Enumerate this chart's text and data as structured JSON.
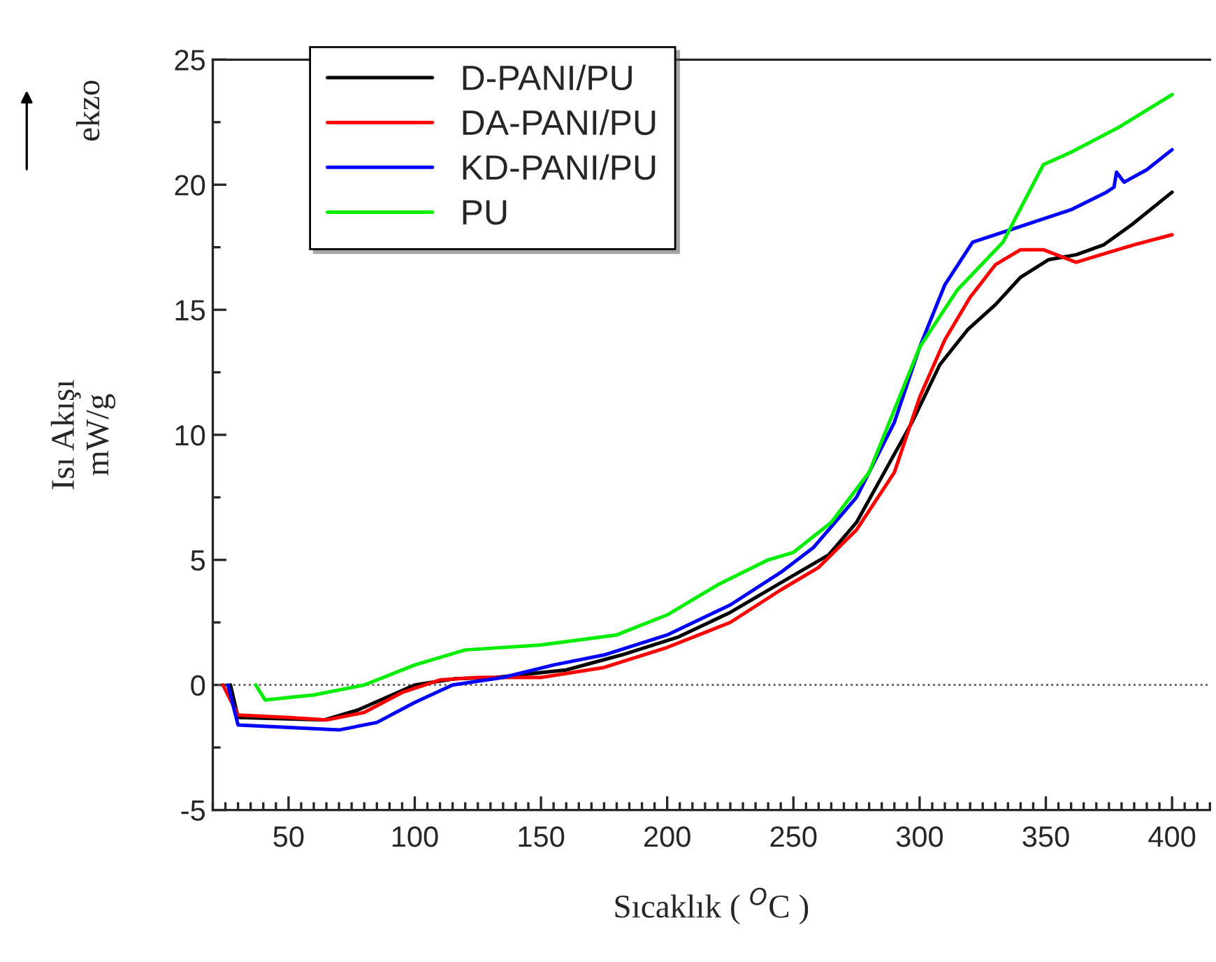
{
  "chart_data": {
    "type": "line",
    "xlabel": "Sıcaklık ( $^{O}$C )",
    "ylabel": "Isı Akışı\nmW/g",
    "annotations": [
      "ekzo"
    ],
    "xlim": [
      20,
      415
    ],
    "xticks": [
      50,
      100,
      150,
      200,
      250,
      300,
      350,
      400
    ],
    "ylim": [
      -5,
      25
    ],
    "yticks": [
      -5,
      0,
      5,
      10,
      15,
      20,
      25
    ],
    "grid": false,
    "legend": "top left",
    "marker": "none",
    "line_style": "solid",
    "ref_lines": [
      {
        "axis": "y",
        "value": 0,
        "color": "#555555",
        "line_style": "dotted"
      }
    ],
    "series": [
      {
        "name": "D-PANI/PU",
        "color": "#000000",
        "x": [
          27,
          30,
          50,
          64,
          77.5,
          91,
          100,
          116,
          132,
          160,
          182,
          204,
          225,
          247,
          264,
          275,
          286,
          297,
          308,
          319,
          330,
          340,
          351,
          362,
          373,
          384,
          400
        ],
        "values": [
          0,
          -1.3,
          null,
          -1.4,
          -1.0,
          -0.4,
          0,
          0.25,
          0.3,
          0.6,
          1.2,
          1.9,
          2.9,
          4.2,
          5.2,
          6.5,
          8.5,
          10.5,
          12.8,
          14.2,
          15.2,
          16.3,
          17.0,
          17.2,
          17.6,
          18.4,
          19.7
        ]
      },
      {
        "name": "DA-PANI/PU",
        "color": "#ff0000",
        "x": [
          24,
          30,
          50,
          65,
          80,
          95,
          110,
          125,
          150,
          175,
          200,
          225,
          245,
          260,
          275,
          290,
          300,
          310,
          320,
          330,
          340,
          349,
          362,
          375,
          385,
          400
        ],
        "values": [
          0,
          -1.2,
          -1.3,
          -1.4,
          -1.1,
          -0.3,
          0.2,
          0.3,
          0.3,
          0.7,
          1.5,
          2.5,
          3.8,
          4.7,
          6.2,
          8.5,
          11.5,
          13.8,
          15.5,
          16.8,
          17.4,
          17.4,
          16.9,
          17.3,
          17.6,
          18.0
        ]
      },
      {
        "name": "KD-PANI/PU",
        "color": "#0000ff",
        "x": [
          26,
          30,
          50,
          70,
          85,
          100,
          115,
          135,
          155,
          175,
          200,
          225,
          245,
          258,
          275,
          290,
          300,
          310,
          321,
          336,
          360,
          374,
          377,
          378,
          381,
          390,
          400
        ],
        "values": [
          0,
          -1.6,
          -1.7,
          -1.8,
          -1.5,
          -0.7,
          0,
          0.3,
          0.8,
          1.2,
          2.0,
          3.2,
          4.5,
          5.5,
          7.5,
          10.5,
          13.5,
          16.0,
          17.7,
          18.2,
          19.0,
          19.7,
          19.9,
          20.5,
          20.1,
          20.6,
          21.4
        ]
      },
      {
        "name": "PU",
        "color": "#00ee00",
        "x": [
          37,
          40.7,
          60,
          80,
          100,
          120,
          150,
          180,
          200,
          220,
          240,
          250,
          265,
          280,
          290,
          300,
          315,
          333,
          349,
          360,
          379,
          400
        ],
        "values": [
          0,
          -0.6,
          -0.4,
          0,
          0.8,
          1.4,
          1.6,
          2.0,
          2.8,
          4.0,
          5.0,
          5.3,
          6.5,
          8.5,
          11.0,
          13.5,
          15.8,
          17.7,
          20.8,
          21.3,
          22.3,
          23.6
        ]
      }
    ]
  }
}
